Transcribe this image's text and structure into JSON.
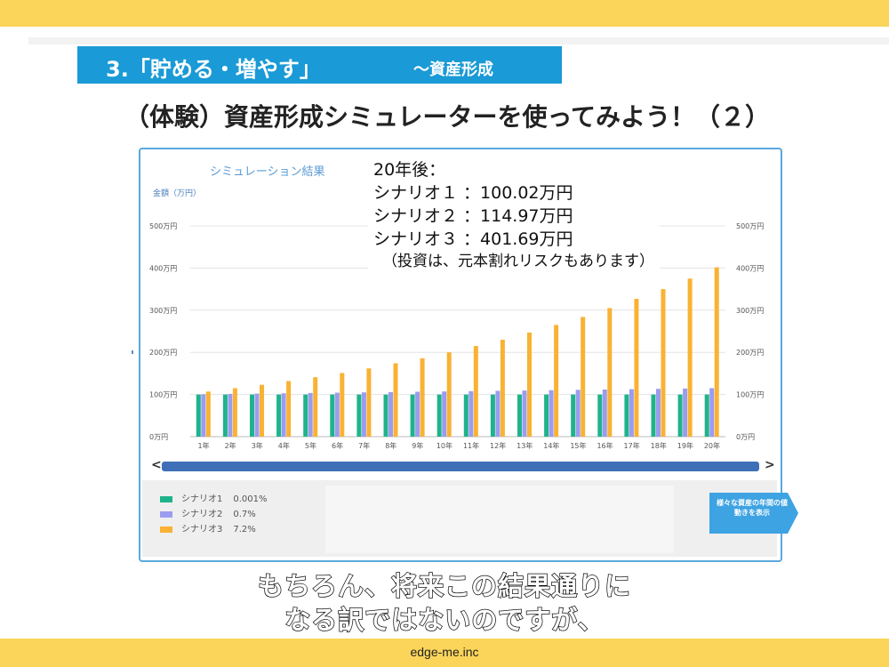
{
  "section_banner": {
    "main": "3.「貯める・増やす」",
    "sub": "～資産形成"
  },
  "slide_title": "（体験）資産形成シミュレーターを使ってみよう！（２）",
  "simulator": {
    "title": "シミュレーション結果",
    "unit_label": "金額（万円）",
    "legend": [
      {
        "name": "シナリオ1",
        "rate": "0.001%",
        "color": "#1fb38a"
      },
      {
        "name": "シナリオ2",
        "rate": "0.7%",
        "color": "#9b9cf0"
      },
      {
        "name": "シナリオ3",
        "rate": "7.2%",
        "color": "#f9b233"
      }
    ],
    "side_button_label": "様々な資産の年間の値動きを表示",
    "scroll_left": "<",
    "scroll_right": ">"
  },
  "overlay": {
    "heading": "20年後：",
    "lines": [
      "シナリオ１ ：100.02万円",
      "シナリオ２ ：114.97万円",
      "シナリオ３ ：401.69万円"
    ],
    "note": "（投資は、元本割れリスクもあります）"
  },
  "caption": {
    "line1": "もちろん、将来この結果通りに",
    "line2": "なる訳ではないのですが、"
  },
  "footer": "edge-me.inc",
  "colors": {
    "accent_yellow": "#fbd55a",
    "banner_blue": "#1a9ad6",
    "panel_border": "#5aa9dd",
    "scrollbar": "#3f6fb7"
  },
  "chart_data": {
    "type": "bar",
    "title": "シミュレーション結果",
    "ylabel": "金額（万円）",
    "ylim": [
      0,
      500
    ],
    "yticks": [
      0,
      100,
      200,
      300,
      400,
      500
    ],
    "ytick_labels": [
      "0万円",
      "100万円",
      "200万円",
      "300万円",
      "400万円",
      "500万円"
    ],
    "categories": [
      "1年",
      "2年",
      "3年",
      "4年",
      "5年",
      "6年",
      "7年",
      "8年",
      "9年",
      "10年",
      "11年",
      "12年",
      "13年",
      "14年",
      "15年",
      "16年",
      "17年",
      "18年",
      "19年",
      "20年"
    ],
    "series": [
      {
        "name": "シナリオ1",
        "color": "#1fb38a",
        "values": [
          100,
          100,
          100,
          100,
          100,
          100,
          100,
          100,
          100,
          100,
          100,
          100,
          100,
          100,
          100,
          100,
          100,
          100,
          100,
          100.02
        ]
      },
      {
        "name": "シナリオ2",
        "color": "#9b9cf0",
        "values": [
          100.7,
          101.4,
          102.1,
          102.8,
          103.6,
          104.3,
          105.0,
          105.7,
          106.5,
          107.2,
          108.0,
          108.7,
          109.5,
          110.3,
          111.0,
          111.8,
          112.6,
          113.4,
          114.2,
          114.97
        ]
      },
      {
        "name": "シナリオ3",
        "color": "#f9b233",
        "values": [
          107,
          115,
          123,
          132,
          141,
          151,
          162,
          174,
          186,
          200,
          215,
          230,
          247,
          265,
          284,
          305,
          327,
          350,
          375,
          401.69
        ]
      }
    ],
    "grid": true,
    "legend_position": "bottom-left"
  }
}
